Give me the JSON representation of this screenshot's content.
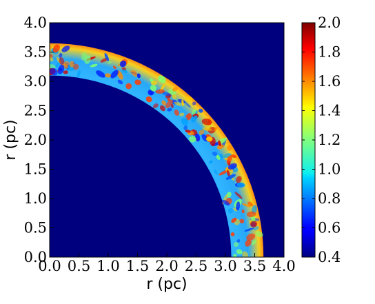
{
  "chart_data": {
    "type": "heatmap",
    "title": "",
    "xlabel": "r (pc)",
    "ylabel": "r (pc)",
    "xlim": [
      0.0,
      4.0
    ],
    "ylim": [
      0.0,
      4.0
    ],
    "xticks": [
      "0.0",
      "0.5",
      "1.0",
      "1.5",
      "2.0",
      "2.5",
      "3.0",
      "3.5",
      "4.0"
    ],
    "yticks": [
      "0.0",
      "0.5",
      "1.0",
      "1.5",
      "2.0",
      "2.5",
      "3.0",
      "3.5",
      "4.0"
    ],
    "shell": {
      "inner_radius": 3.1,
      "outer_radius": 3.65
    },
    "background_value": 0.4,
    "colorbar": {
      "min": 0.4,
      "max": 2.0,
      "colormap": "jet",
      "ticks": [
        "0.4",
        "0.6",
        "0.8",
        "1.0",
        "1.2",
        "1.4",
        "1.6",
        "1.8",
        "2.0"
      ]
    },
    "colors": {
      "background": "#00007f",
      "ring_mid": "#35b6ff",
      "ring_edge_hot": "#ff2a00"
    },
    "grid": false,
    "legend": "none"
  }
}
